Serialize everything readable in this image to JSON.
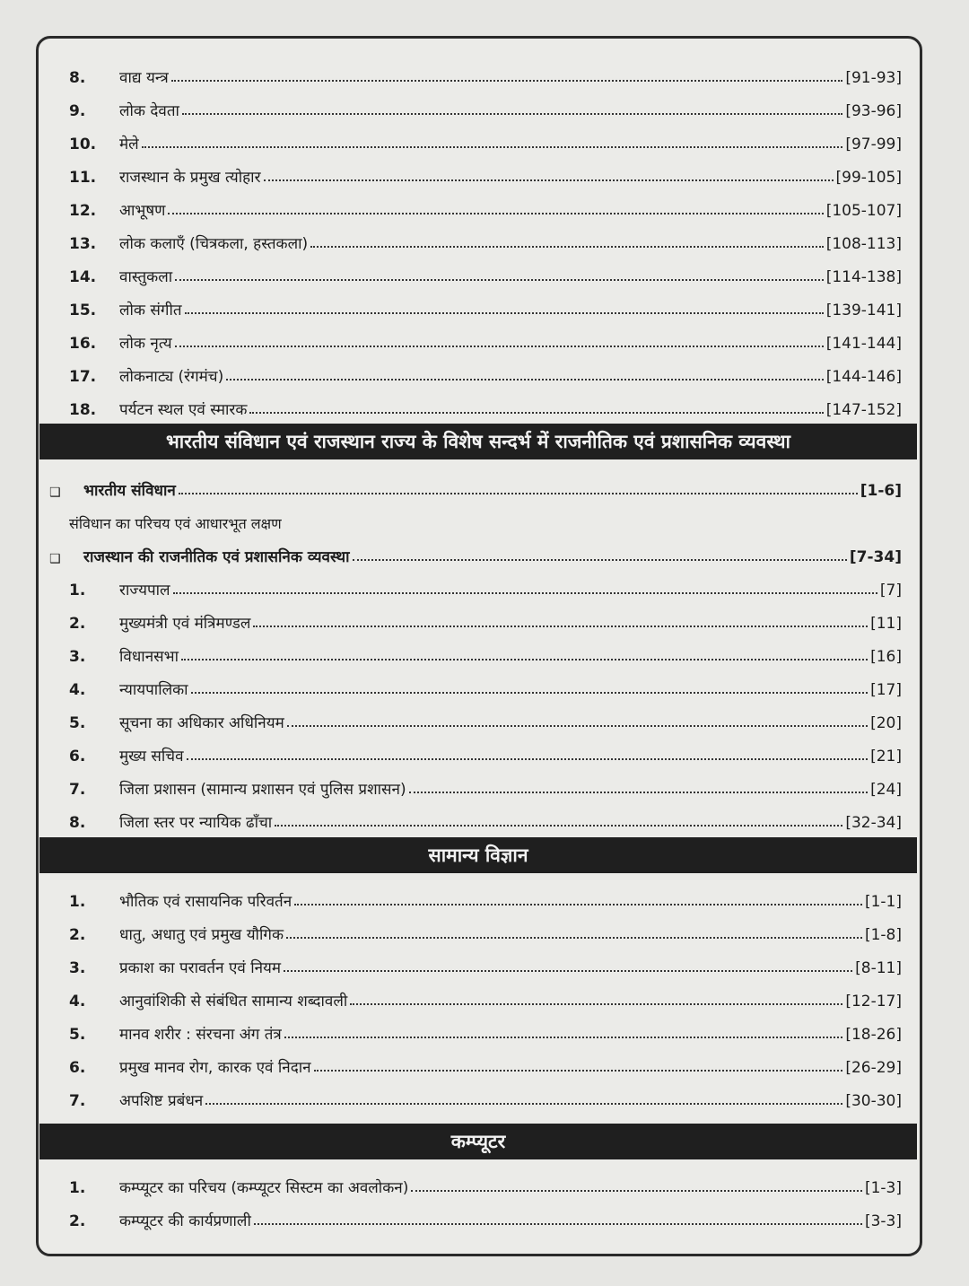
{
  "section_culture": {
    "items": [
      {
        "n": "8.",
        "t": "वाद्य यन्त्र",
        "p": "[91-93]"
      },
      {
        "n": "9.",
        "t": "लोक देवता",
        "p": "[93-96]"
      },
      {
        "n": "10.",
        "t": "मेले",
        "p": "[97-99]"
      },
      {
        "n": "11.",
        "t": "राजस्थान के प्रमुख त्योहार",
        "p": "[99-105]"
      },
      {
        "n": "12.",
        "t": "आभूषण",
        "p": "[105-107]"
      },
      {
        "n": "13.",
        "t": "लोक कलाएँ (चित्रकला, हस्तकला)",
        "p": "[108-113]"
      },
      {
        "n": "14.",
        "t": "वास्तुकला",
        "p": "[114-138]"
      },
      {
        "n": "15.",
        "t": "लोक संगीत",
        "p": "[139-141]"
      },
      {
        "n": "16.",
        "t": "लोक नृत्य",
        "p": "[141-144]"
      },
      {
        "n": "17.",
        "t": "लोकनाट्य (रंगमंच)",
        "p": "[144-146]"
      },
      {
        "n": "18.",
        "t": "पर्यटन स्थल एवं स्मारक",
        "p": "[147-152]"
      }
    ]
  },
  "section_polity": {
    "header": "भारतीय संविधान एवं राजस्थान राज्य के विशेष सन्दर्भ में राजनीतिक एवं प्रशासनिक व्यवस्था",
    "part1": {
      "t": "भारतीय संविधान",
      "p": "[1-6]",
      "sub": "संविधान का परिचय एवं आधारभूत लक्षण"
    },
    "part2": {
      "t": "राजस्थान की राजनीतिक एवं प्रशासनिक व्यवस्था",
      "p": "[7-34]"
    },
    "items": [
      {
        "n": "1.",
        "t": "राज्यपाल",
        "p": "[7]"
      },
      {
        "n": "2.",
        "t": "मुख्यमंत्री एवं मंत्रिमण्डल",
        "p": "[11]"
      },
      {
        "n": "3.",
        "t": "विधानसभा",
        "p": "[16]"
      },
      {
        "n": "4.",
        "t": "न्यायपालिका",
        "p": "[17]"
      },
      {
        "n": "5.",
        "t": "सूचना का अधिकार अधिनियम",
        "p": "[20]"
      },
      {
        "n": "6.",
        "t": "मुख्य सचिव",
        "p": "[21]"
      },
      {
        "n": "7.",
        "t": "जिला प्रशासन (सामान्य प्रशासन एवं पुलिस प्रशासन)",
        "p": "[24]"
      },
      {
        "n": "8.",
        "t": "जिला स्तर पर न्यायिक ढाँचा",
        "p": "[32-34]"
      }
    ]
  },
  "section_science": {
    "header": "सामान्य विज्ञान",
    "items": [
      {
        "n": "1.",
        "t": "भौतिक एवं रासायनिक परिवर्तन",
        "p": "[1-1]"
      },
      {
        "n": "2.",
        "t": "धातु, अधातु एवं प्रमुख यौगिक",
        "p": "[1-8]"
      },
      {
        "n": "3.",
        "t": "प्रकाश का परावर्तन एवं नियम",
        "p": "[8-11]"
      },
      {
        "n": "4.",
        "t": "आनुवांशिकी से संबंधित सामान्य शब्दावली",
        "p": "[12-17]"
      },
      {
        "n": "5.",
        "t": "मानव शरीर : संरचना अंग तंत्र",
        "p": "[18-26]"
      },
      {
        "n": "6.",
        "t": "प्रमुख मानव रोग, कारक एवं निदान",
        "p": "[26-29]"
      },
      {
        "n": "7.",
        "t": "अपशिष्ट प्रबंधन",
        "p": "[30-30]"
      }
    ]
  },
  "section_computer": {
    "header": "कम्प्यूटर",
    "items": [
      {
        "n": "1.",
        "t": "कम्प्यूटर का परिचय (कम्प्यूटर सिस्टम का अवलोकन)",
        "p": "[1-3]"
      },
      {
        "n": "2.",
        "t": "कम्प्यूटर की कार्यप्रणाली",
        "p": "[3-3]"
      }
    ]
  }
}
